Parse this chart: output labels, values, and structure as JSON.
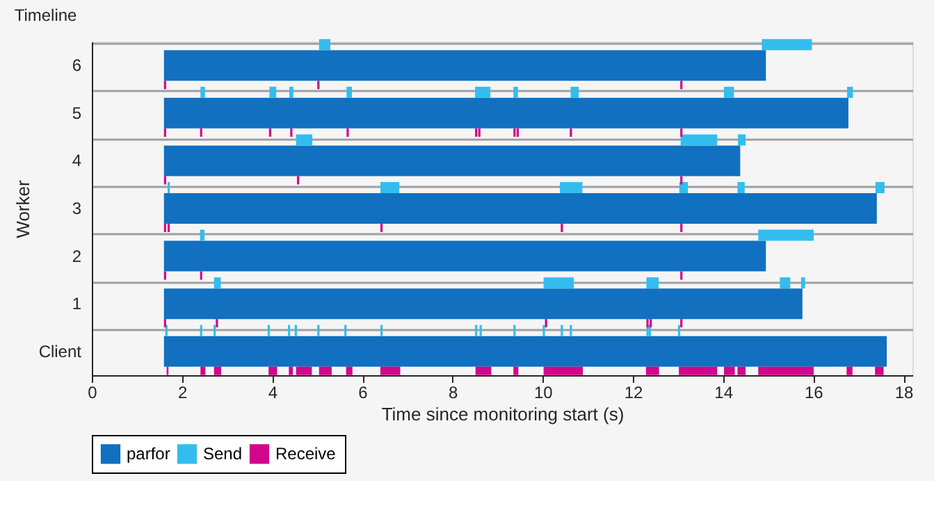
{
  "chart_data": {
    "type": "bar",
    "orientation": "horizontal",
    "title": "Timeline",
    "xlabel": "Time since monitoring start (s)",
    "ylabel": "Worker",
    "categories": [
      "6",
      "5",
      "4",
      "3",
      "2",
      "1",
      "Client"
    ],
    "xlim": [
      0,
      18.2
    ],
    "xticks": [
      0,
      2,
      4,
      6,
      8,
      10,
      12,
      14,
      16,
      18
    ],
    "grid": "y",
    "legend": "bottom",
    "series": [
      {
        "name": "parfor",
        "color": "#1170c0",
        "base": [
          1.6,
          1.6,
          1.6,
          1.6,
          1.6,
          1.6,
          1.6
        ],
        "values": [
          13.35,
          15.18,
          12.78,
          15.81,
          13.35,
          14.16,
          16.03
        ]
      },
      {
        "name": "Send",
        "color": "#33bdee",
        "base": [
          5.04,
          2.41,
          4.53,
          1.68,
          2.4,
          2.71,
          1.63
        ],
        "values": [
          0.25,
          0.1,
          0.36,
          0.05,
          0.1,
          0.15,
          0.05
        ]
      },
      {
        "color": "#33bdee",
        "base": [
          14.86,
          3.94,
          13.06,
          6.4,
          14.78,
          10.02,
          2.4
        ],
        "values": [
          1.11,
          0.15,
          0.81,
          0.42,
          1.23,
          0.67,
          0.05
        ]
      },
      {
        "color": "#33bdee",
        "base": [
          null,
          4.38,
          14.33,
          10.38,
          null,
          12.3,
          2.7
        ],
        "values": [
          null,
          0.09,
          0.17,
          0.5,
          null,
          0.27,
          0.05
        ]
      },
      {
        "color": "#33bdee",
        "base": [
          null,
          5.65,
          null,
          13.03,
          null,
          15.26,
          3.9
        ],
        "values": [
          null,
          0.12,
          null,
          0.19,
          null,
          0.23,
          0.05
        ]
      },
      {
        "color": "#33bdee",
        "base": [
          null,
          8.5,
          null,
          14.32,
          null,
          15.73,
          4.35
        ],
        "values": [
          null,
          0.34,
          null,
          0.16,
          null,
          0.09,
          0.05
        ]
      },
      {
        "color": "#33bdee",
        "base": [
          null,
          9.35,
          null,
          17.38,
          null,
          null,
          4.5
        ],
        "values": [
          null,
          0.1,
          null,
          0.2,
          null,
          null,
          0.05
        ]
      },
      {
        "color": "#33bdee",
        "base": [
          null,
          10.62,
          null,
          null,
          null,
          null,
          5.0
        ],
        "values": [
          null,
          0.18,
          null,
          null,
          null,
          null,
          0.05
        ]
      },
      {
        "color": "#33bdee",
        "base": [
          null,
          14.02,
          null,
          null,
          null,
          null,
          5.6
        ],
        "values": [
          null,
          0.22,
          null,
          null,
          null,
          null,
          0.05
        ]
      },
      {
        "color": "#33bdee",
        "base": [
          null,
          16.75,
          null,
          null,
          null,
          null,
          6.4
        ],
        "values": [
          null,
          0.13,
          null,
          null,
          null,
          null,
          0.05
        ]
      },
      {
        "color": "#33bdee",
        "base": [
          null,
          null,
          null,
          null,
          null,
          null,
          8.5
        ],
        "values": [
          null,
          null,
          null,
          null,
          null,
          null,
          0.05
        ]
      },
      {
        "color": "#33bdee",
        "base": [
          null,
          null,
          null,
          null,
          null,
          null,
          8.6
        ],
        "values": [
          null,
          null,
          null,
          null,
          null,
          null,
          0.05
        ]
      },
      {
        "color": "#33bdee",
        "base": [
          null,
          null,
          null,
          null,
          null,
          null,
          9.35
        ],
        "values": [
          null,
          null,
          null,
          null,
          null,
          null,
          0.05
        ]
      },
      {
        "color": "#33bdee",
        "base": [
          null,
          null,
          null,
          null,
          null,
          null,
          10.0
        ],
        "values": [
          null,
          null,
          null,
          null,
          null,
          null,
          0.05
        ]
      },
      {
        "color": "#33bdee",
        "base": [
          null,
          null,
          null,
          null,
          null,
          null,
          10.4
        ],
        "values": [
          null,
          null,
          null,
          null,
          null,
          null,
          0.05
        ]
      },
      {
        "color": "#33bdee",
        "base": [
          null,
          null,
          null,
          null,
          null,
          null,
          10.6
        ],
        "values": [
          null,
          null,
          null,
          null,
          null,
          null,
          0.05
        ]
      },
      {
        "color": "#33bdee",
        "base": [
          null,
          null,
          null,
          null,
          null,
          null,
          12.3
        ],
        "values": [
          null,
          null,
          null,
          null,
          null,
          null,
          0.05
        ]
      },
      {
        "color": "#33bdee",
        "base": [
          null,
          null,
          null,
          null,
          null,
          null,
          12.35
        ],
        "values": [
          null,
          null,
          null,
          null,
          null,
          null,
          0.05
        ]
      },
      {
        "color": "#33bdee",
        "base": [
          null,
          null,
          null,
          null,
          null,
          null,
          13.0
        ],
        "values": [
          null,
          null,
          null,
          null,
          null,
          null,
          0.05
        ]
      },
      {
        "name": "Receive",
        "color": "#d2068c",
        "base": [
          1.6,
          1.6,
          1.6,
          1.6,
          1.6,
          1.6,
          1.66
        ],
        "values": [
          0.05,
          0.05,
          0.05,
          0.05,
          0.05,
          0.05,
          0.04
        ]
      },
      {
        "color": "#d2068c",
        "base": [
          5.0,
          2.4,
          4.55,
          1.68,
          2.4,
          2.75,
          2.41
        ],
        "values": [
          0.05,
          0.05,
          0.05,
          0.05,
          0.05,
          0.05,
          0.11
        ]
      },
      {
        "color": "#d2068c",
        "base": [
          13.05,
          3.93,
          13.05,
          6.4,
          13.05,
          10.05,
          2.71
        ],
        "values": [
          0.05,
          0.05,
          0.05,
          0.05,
          0.05,
          0.05,
          0.16
        ]
      },
      {
        "color": "#d2068c",
        "base": [
          null,
          4.4,
          null,
          10.4,
          null,
          12.3,
          3.92
        ],
        "values": [
          null,
          0.05,
          null,
          0.05,
          null,
          0.05,
          0.19
        ]
      },
      {
        "color": "#d2068c",
        "base": [
          null,
          5.65,
          null,
          13.05,
          null,
          12.37,
          4.37
        ],
        "values": [
          null,
          0.05,
          null,
          0.05,
          null,
          0.05,
          0.09
        ]
      },
      {
        "color": "#d2068c",
        "base": [
          null,
          8.5,
          null,
          null,
          null,
          13.05,
          4.53
        ],
        "values": [
          null,
          0.05,
          null,
          null,
          null,
          0.05,
          0.35
        ]
      },
      {
        "color": "#d2068c",
        "base": [
          null,
          8.57,
          null,
          null,
          null,
          null,
          5.04
        ],
        "values": [
          null,
          0.05,
          null,
          null,
          null,
          null,
          0.28
        ]
      },
      {
        "color": "#d2068c",
        "base": [
          null,
          9.35,
          null,
          null,
          null,
          null,
          5.64
        ],
        "values": [
          null,
          0.05,
          null,
          null,
          null,
          null,
          0.14
        ]
      },
      {
        "color": "#d2068c",
        "base": [
          null,
          9.42,
          null,
          null,
          null,
          null,
          6.4
        ],
        "values": [
          null,
          0.05,
          null,
          null,
          null,
          null,
          0.44
        ]
      },
      {
        "color": "#d2068c",
        "base": [
          null,
          10.6,
          null,
          null,
          null,
          null,
          8.51
        ],
        "values": [
          null,
          0.05,
          null,
          null,
          null,
          null,
          0.35
        ]
      },
      {
        "color": "#d2068c",
        "base": [
          null,
          13.05,
          null,
          null,
          null,
          null,
          9.35
        ],
        "values": [
          null,
          0.05,
          null,
          null,
          null,
          null,
          0.11
        ]
      },
      {
        "color": "#d2068c",
        "base": [
          null,
          null,
          null,
          null,
          null,
          null,
          10.02
        ],
        "values": [
          null,
          null,
          null,
          null,
          null,
          null,
          0.87
        ]
      },
      {
        "color": "#d2068c",
        "base": [
          null,
          null,
          null,
          null,
          null,
          null,
          12.29
        ],
        "values": [
          null,
          null,
          null,
          null,
          null,
          null,
          0.29
        ]
      },
      {
        "color": "#d2068c",
        "base": [
          null,
          null,
          null,
          null,
          null,
          null,
          13.02
        ],
        "values": [
          null,
          null,
          null,
          null,
          null,
          null,
          0.85
        ]
      },
      {
        "color": "#d2068c",
        "base": [
          null,
          null,
          null,
          null,
          null,
          null,
          14.02
        ],
        "values": [
          null,
          null,
          null,
          null,
          null,
          null,
          0.24
        ]
      },
      {
        "color": "#d2068c",
        "base": [
          null,
          null,
          null,
          null,
          null,
          null,
          14.32
        ],
        "values": [
          null,
          null,
          null,
          null,
          null,
          null,
          0.18
        ]
      },
      {
        "color": "#d2068c",
        "base": [
          null,
          null,
          null,
          null,
          null,
          null,
          14.78
        ],
        "values": [
          null,
          null,
          null,
          null,
          null,
          null,
          1.23
        ]
      },
      {
        "color": "#d2068c",
        "base": [
          null,
          null,
          null,
          null,
          null,
          null,
          16.74
        ],
        "values": [
          null,
          null,
          null,
          null,
          null,
          null,
          0.13
        ]
      },
      {
        "color": "#d2068c",
        "base": [
          null,
          null,
          null,
          null,
          null,
          null,
          17.37
        ],
        "values": [
          null,
          null,
          null,
          null,
          null,
          null,
          0.19
        ]
      }
    ]
  }
}
